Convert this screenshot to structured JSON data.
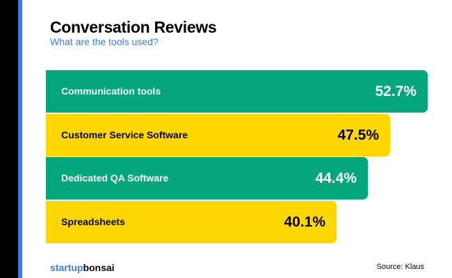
{
  "chart_data": {
    "type": "bar",
    "orientation": "horizontal",
    "title": "Conversation Reviews",
    "subtitle": "What are the tools used?",
    "categories": [
      "Communication tools",
      "Customer Service Software",
      "Dedicated QA Software",
      "Spreadsheets"
    ],
    "values": [
      52.7,
      47.5,
      44.4,
      40.1
    ],
    "labels": [
      "52.7%",
      "47.5%",
      "44.4%",
      "40.1%"
    ],
    "unit": "%",
    "xlim": [
      0,
      100
    ],
    "grid": false,
    "colors": [
      "#03a77b",
      "#ffd700",
      "#03a77b",
      "#ffd700"
    ],
    "text_colors": [
      "#ffffff",
      "#000000",
      "#ffffff",
      "#000000"
    ]
  },
  "footer": {
    "logo_part1": "startup",
    "logo_part2": "bonsai",
    "source": "Source: Klaus"
  }
}
